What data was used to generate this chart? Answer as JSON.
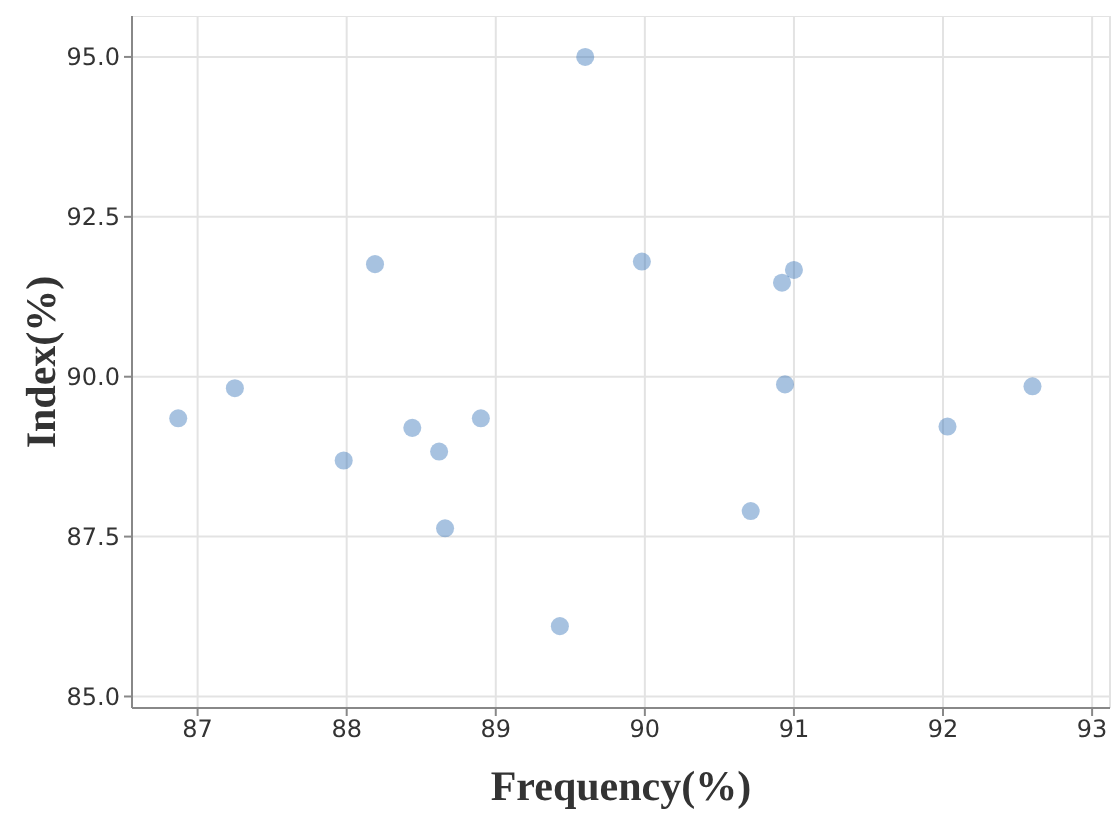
{
  "chart_data": {
    "type": "scatter",
    "marker": "circle",
    "xlabel": "Frequency(%)",
    "ylabel": "Index(%)",
    "x": [
      86.87,
      87.25,
      88.19,
      87.98,
      88.44,
      88.9,
      88.62,
      88.66,
      89.6,
      89.43,
      89.98,
      90.71,
      91.0,
      90.92,
      90.94,
      92.03,
      92.6
    ],
    "series": [
      {
        "color": "#2e6db4",
        "values": [
          89.35,
          89.82,
          91.76,
          88.69,
          89.2,
          89.35,
          88.83,
          87.63,
          95.0,
          86.1,
          91.8,
          87.9,
          91.67,
          91.47,
          89.88,
          89.22,
          89.85
        ]
      }
    ],
    "xlim": [
      86.56,
      93.12
    ],
    "ylim": [
      84.82,
      95.64
    ],
    "xticks": [
      87,
      88,
      89,
      90,
      91,
      92,
      93
    ],
    "yticks": [
      {
        "value": 85,
        "label": "85.0"
      },
      {
        "value": 87.5,
        "label": "87.5"
      },
      {
        "value": 90,
        "label": "90.0"
      },
      {
        "value": 92.5,
        "label": "92.5"
      },
      {
        "value": 95,
        "label": "95.0"
      }
    ],
    "grid": true
  }
}
